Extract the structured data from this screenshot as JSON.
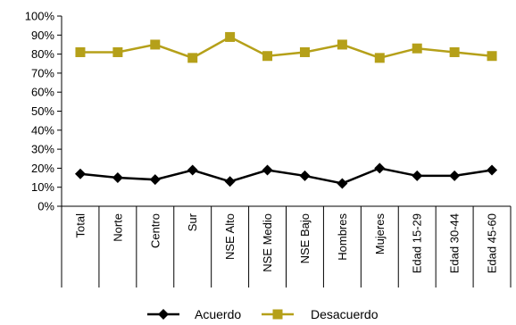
{
  "chart_data": {
    "type": "line",
    "title": "",
    "xlabel": "",
    "ylabel": "",
    "ylim": [
      0,
      100
    ],
    "yticks": [
      0,
      10,
      20,
      30,
      40,
      50,
      60,
      70,
      80,
      90,
      100
    ],
    "ytick_labels": [
      "0%",
      "10%",
      "20%",
      "30%",
      "40%",
      "50%",
      "60%",
      "70%",
      "80%",
      "90%",
      "100%"
    ],
    "grid": false,
    "legend": "bottom",
    "categories": [
      "Total",
      "Norte",
      "Centro",
      "Sur",
      "NSE Alto",
      "NSE Medio",
      "NSE Bajo",
      "Hombres",
      "Mujeres",
      "Edad 15-29",
      "Edad 30-44",
      "Edad 45-60"
    ],
    "series": [
      {
        "name": "Acuerdo",
        "color": "#000000",
        "marker": "diamond",
        "values": [
          17,
          15,
          14,
          19,
          13,
          19,
          16,
          12,
          20,
          16,
          16,
          19
        ]
      },
      {
        "name": "Desacuerdo",
        "color": "#b5a019",
        "marker": "square",
        "values": [
          81,
          81,
          85,
          78,
          89,
          79,
          81,
          85,
          78,
          83,
          81,
          79
        ]
      }
    ]
  }
}
